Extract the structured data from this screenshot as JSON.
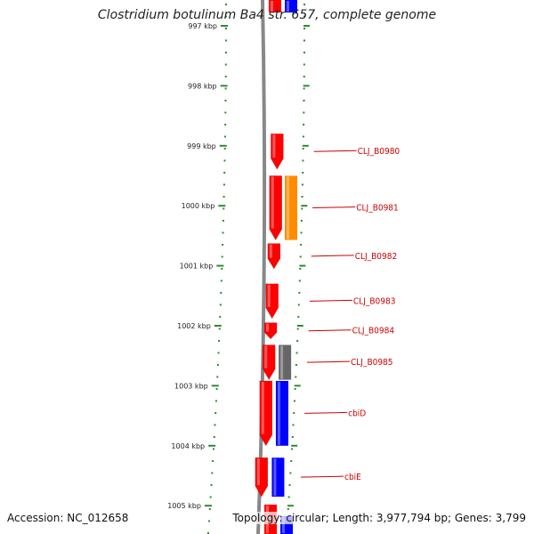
{
  "title": "Clostridium botulinum Ba4 str. 657, complete genome",
  "footer": {
    "accession": "Accession: NC_012658",
    "summary": "Topology: circular; Length: 3,977,794 bp; Genes: 3,799"
  },
  "colors": {
    "forward_cds": "#ff0000",
    "reverse_cds": "#0000ff",
    "orange_feature": "#ff8c00",
    "gray_feature": "#666666",
    "tick": "#2e8b2e",
    "label": "#cc0000",
    "backbone": "#888888"
  },
  "scale_kbp": {
    "labels": [
      "997 kbp",
      "998 kbp",
      "999 kbp",
      "1000 kbp",
      "1001 kbp",
      "1002 kbp",
      "1003 kbp",
      "1004 kbp",
      "1005 kbp"
    ]
  },
  "genes": [
    {
      "label": "CLJ_B0980",
      "strand": "forward",
      "start_kbp": 998.8,
      "end_kbp": 999.39
    },
    {
      "label": "CLJ_B0981",
      "strand": "forward",
      "start_kbp": 999.5,
      "end_kbp": 1000.57
    },
    {
      "label": "CLJ_B0982",
      "strand": "forward",
      "start_kbp": 1000.63,
      "end_kbp": 1001.05
    },
    {
      "label": "CLJ_B0983",
      "strand": "forward",
      "start_kbp": 1001.3,
      "end_kbp": 1001.88
    },
    {
      "label": "CLJ_B0984",
      "strand": "forward",
      "start_kbp": 1001.95,
      "end_kbp": 1002.22
    },
    {
      "label": "CLJ_B0985",
      "strand": "forward",
      "start_kbp": 1002.32,
      "end_kbp": 1002.9
    },
    {
      "label": "cbiD",
      "strand": "forward",
      "start_kbp": 1002.92,
      "end_kbp": 1004.0
    },
    {
      "label": "cbiE",
      "strand": "forward",
      "start_kbp": 1004.2,
      "end_kbp": 1004.85
    }
  ],
  "other_features": [
    {
      "type": "orange",
      "start_kbp": 999.5,
      "end_kbp": 1000.57
    },
    {
      "type": "gray",
      "start_kbp": 1002.32,
      "end_kbp": 1002.9
    },
    {
      "type": "blue",
      "start_kbp": 1002.92,
      "end_kbp": 1004.0
    },
    {
      "type": "blue",
      "start_kbp": 1004.2,
      "end_kbp": 1004.85
    }
  ]
}
